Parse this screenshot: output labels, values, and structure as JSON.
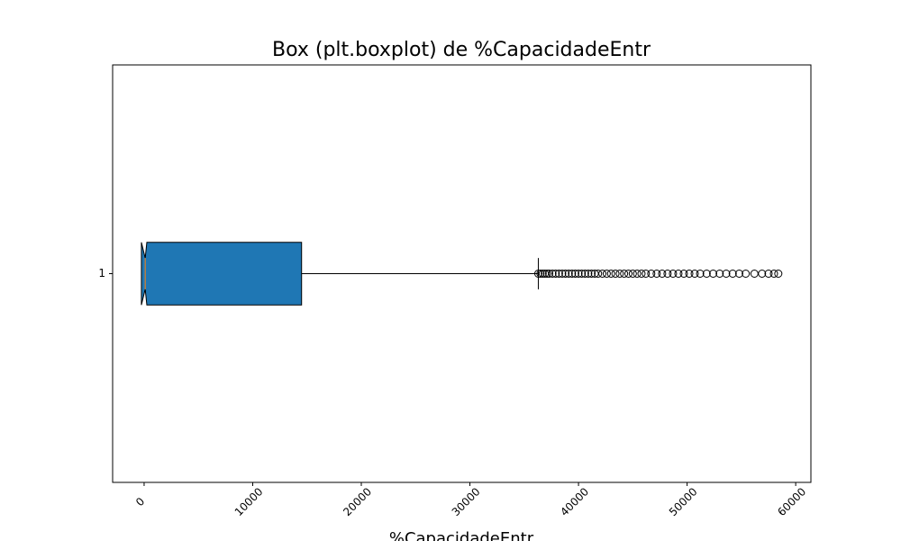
{
  "chart_data": {
    "type": "box",
    "title": "Box (plt.boxplot) de %CapacidadeEntr",
    "xlabel": "%CapacidadeEntr",
    "orientation": "horizontal",
    "color": "#1f77b4",
    "median_color": "#ff7f0e",
    "xlim": [
      -2900,
      61400
    ],
    "xticks": [
      0,
      10000,
      20000,
      30000,
      40000,
      50000,
      60000
    ],
    "ylim": [
      0.5,
      1.5
    ],
    "yticks": [
      1
    ],
    "boxes": [
      {
        "whislo": 0,
        "q1": 0,
        "cilo": -250,
        "med": 100,
        "cihi": 250,
        "q3": 14500,
        "whishi": 36300,
        "fliers": [
          36300,
          36500,
          36700,
          36900,
          37100,
          37300,
          37600,
          37900,
          38200,
          38500,
          38800,
          39100,
          39400,
          39700,
          40000,
          40300,
          40600,
          40900,
          41200,
          41500,
          41800,
          42200,
          42600,
          43000,
          43400,
          43800,
          44200,
          44600,
          45000,
          45400,
          45800,
          46200,
          46700,
          47200,
          47700,
          48200,
          48700,
          49200,
          49700,
          50200,
          50700,
          51200,
          51800,
          52400,
          53000,
          53600,
          54200,
          54800,
          55400,
          56200,
          56900,
          57500,
          58000,
          58400
        ]
      }
    ]
  }
}
